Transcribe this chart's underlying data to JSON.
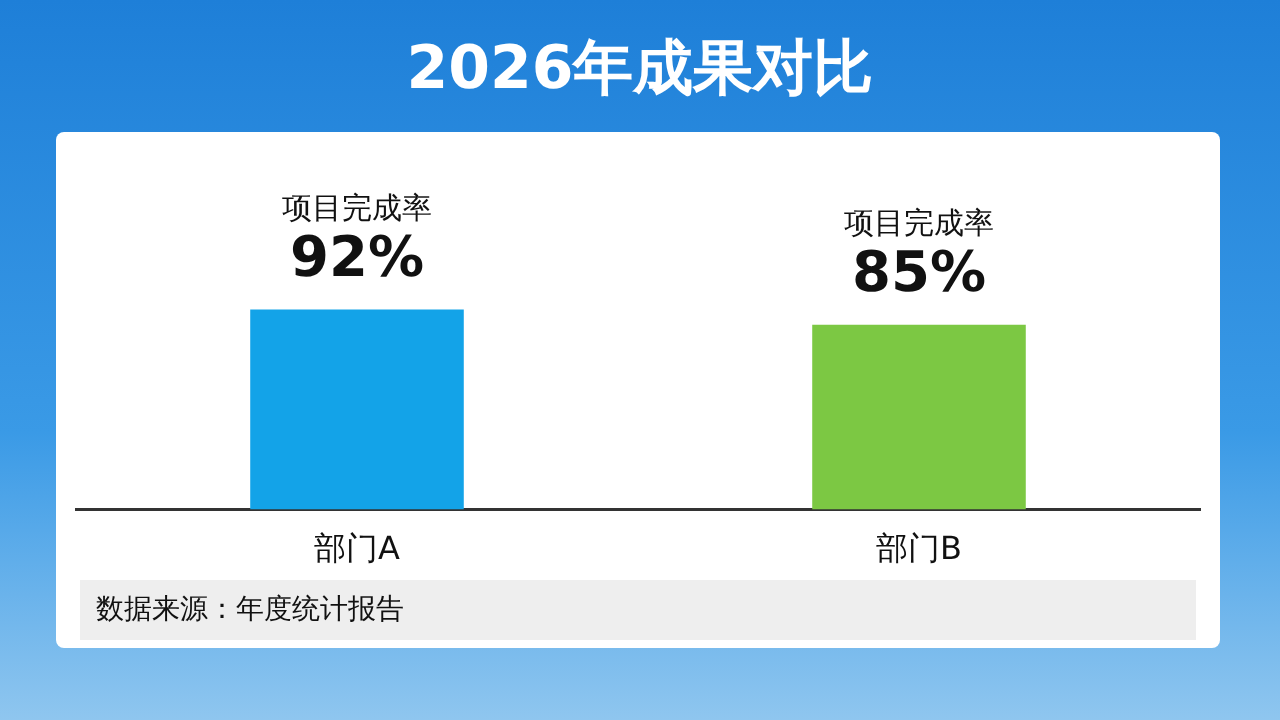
{
  "chart_data": {
    "type": "bar",
    "title": "2026年成果对比",
    "categories": [
      "部门A",
      "部门B"
    ],
    "series": [
      {
        "values": [
          92,
          85
        ],
        "colors": [
          "#13a3e8",
          "#7cc843"
        ],
        "value_labels": [
          "92%",
          "85%"
        ]
      }
    ],
    "annotations": [
      {
        "text": "项目完成率",
        "x": "部门A",
        "y": 92
      },
      {
        "text": "项目完成率",
        "x": "部门B",
        "y": 85
      },
      "数据来源：年度统计报告"
    ]
  }
}
